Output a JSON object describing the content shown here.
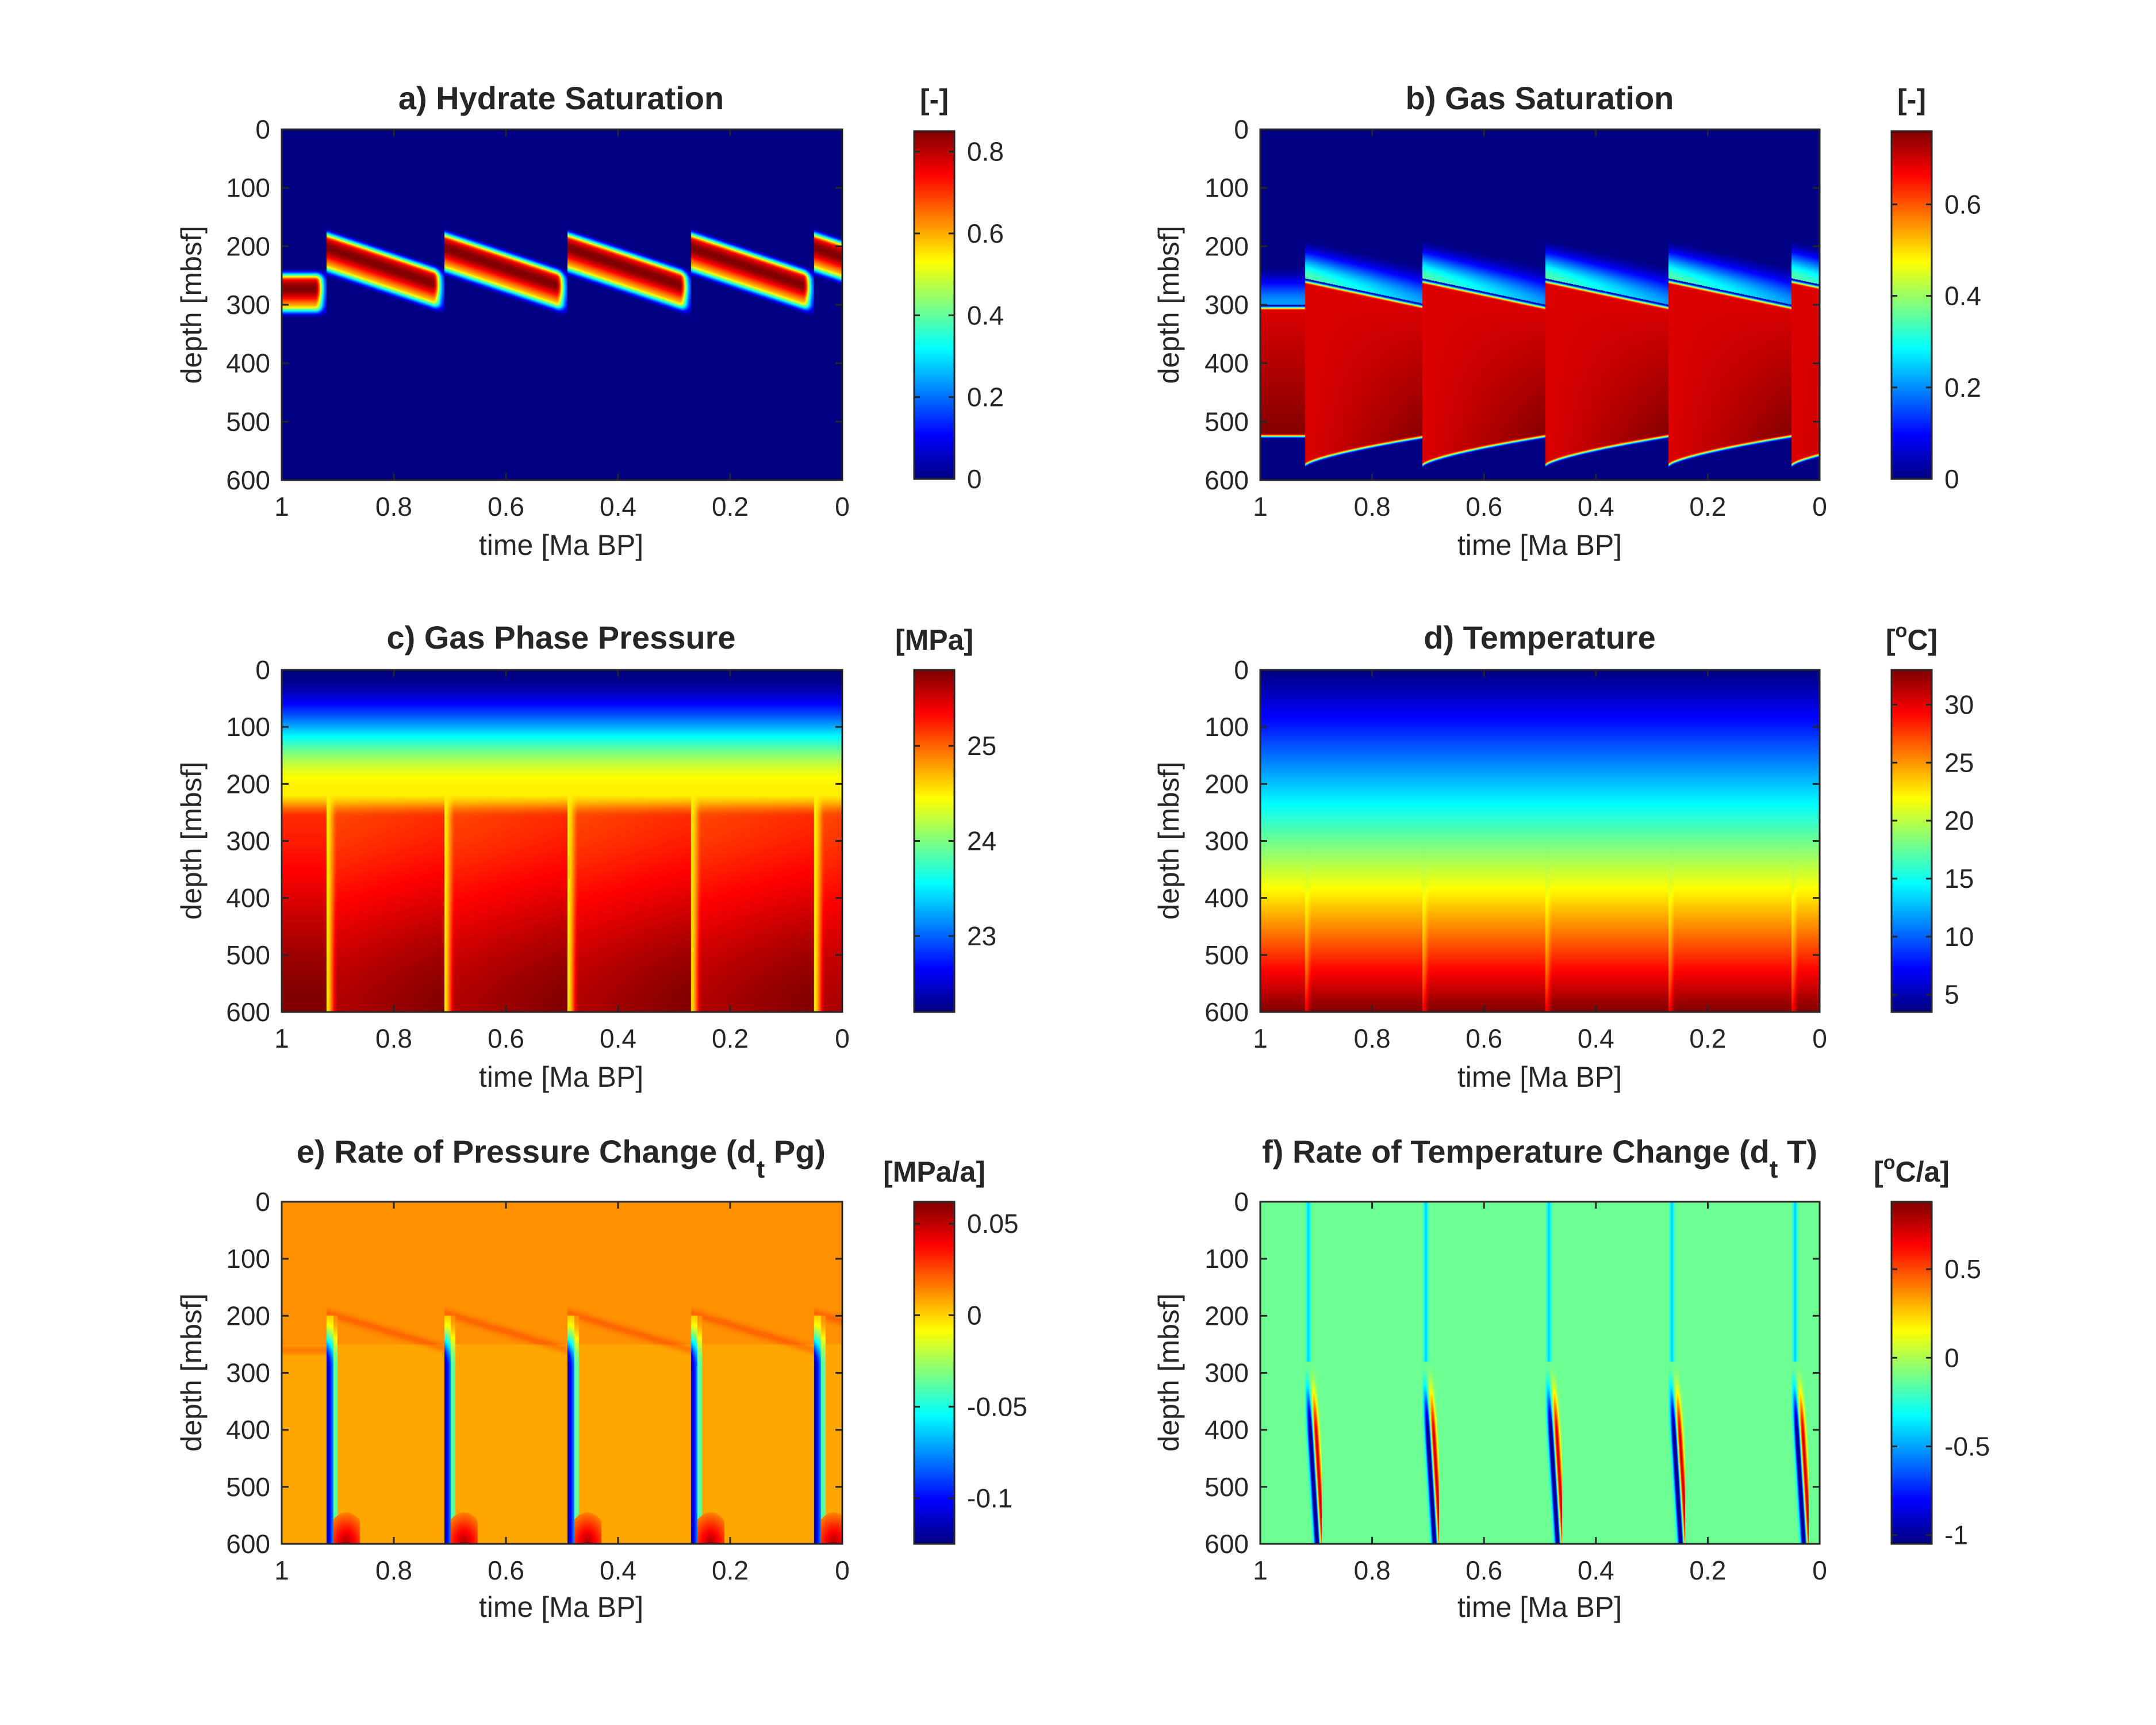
{
  "chart_data": [
    {
      "type": "heatmap",
      "panel": "a",
      "title": "a) Hydrate Saturation",
      "xlabel": "time [Ma BP]",
      "ylabel": "depth [mbsf]",
      "xlim": [
        1,
        0
      ],
      "ylim": [
        0,
        600
      ],
      "xticks": [
        "1",
        "0.8",
        "0.6",
        "0.4",
        "0.2",
        "0"
      ],
      "yticks": [
        "0",
        "100",
        "200",
        "300",
        "400",
        "500",
        "600"
      ],
      "colorbar": {
        "label": "[-]",
        "min": 0,
        "max": 0.85,
        "ticks": [
          "0",
          "0.2",
          "0.4",
          "0.6",
          "0.8"
        ],
        "tick_values": [
          0,
          0.2,
          0.4,
          0.6,
          0.8
        ]
      },
      "colormap": "jet",
      "field": "hydrate",
      "cycle_times_ma": [
        0.92,
        0.71,
        0.49,
        0.27,
        0.05
      ],
      "background_value": 0,
      "band": {
        "top_depth_start": 185,
        "top_depth_end": 255,
        "thickness": 50,
        "peak_value": 0.85
      }
    },
    {
      "type": "heatmap",
      "panel": "b",
      "title": "b) Gas Saturation",
      "xlabel": "time [Ma BP]",
      "ylabel": "depth [mbsf]",
      "xlim": [
        1,
        0
      ],
      "ylim": [
        0,
        600
      ],
      "xticks": [
        "1",
        "0.8",
        "0.6",
        "0.4",
        "0.2",
        "0"
      ],
      "yticks": [
        "0",
        "100",
        "200",
        "300",
        "400",
        "500",
        "600"
      ],
      "colorbar": {
        "label": "[-]",
        "min": 0,
        "max": 0.76,
        "ticks": [
          "0",
          "0.2",
          "0.4",
          "0.6"
        ],
        "tick_values": [
          0,
          0.2,
          0.4,
          0.6
        ]
      },
      "colormap": "jet",
      "field": "gas",
      "cycle_times_ma": [
        0.92,
        0.71,
        0.49,
        0.27,
        0.05
      ],
      "background_value": 0,
      "gas_zone": {
        "top_depth_start": 255,
        "top_depth_end": 300,
        "bottom_depth_start": 580,
        "bottom_depth_end": 530,
        "value_range": [
          0.66,
          0.76
        ]
      }
    },
    {
      "type": "heatmap",
      "panel": "c",
      "title": "c) Gas Phase Pressure",
      "xlabel": "time [Ma BP]",
      "ylabel": "depth [mbsf]",
      "xlim": [
        1,
        0
      ],
      "ylim": [
        0,
        600
      ],
      "xticks": [
        "1",
        "0.8",
        "0.6",
        "0.4",
        "0.2",
        "0"
      ],
      "yticks": [
        "0",
        "100",
        "200",
        "300",
        "400",
        "500",
        "600"
      ],
      "colorbar": {
        "label": "[MPa]",
        "min": 22.2,
        "max": 25.8,
        "ticks": [
          "23",
          "24",
          "25"
        ],
        "tick_values": [
          23,
          24,
          25
        ]
      },
      "colormap": "jet",
      "field": "pressure",
      "cycle_times_ma": [
        0.92,
        0.71,
        0.49,
        0.27,
        0.05
      ],
      "surface_value": 22.2,
      "plateau_value": 24.5,
      "deep_value_range": [
        25.2,
        25.8
      ]
    },
    {
      "type": "heatmap",
      "panel": "d",
      "title": "d) Temperature",
      "xlabel": "time [Ma BP]",
      "ylabel": "depth [mbsf]",
      "xlim": [
        1,
        0
      ],
      "ylim": [
        0,
        600
      ],
      "xticks": [
        "1",
        "0.8",
        "0.6",
        "0.4",
        "0.2",
        "0"
      ],
      "yticks": [
        "0",
        "100",
        "200",
        "300",
        "400",
        "500",
        "600"
      ],
      "colorbar": {
        "label_main": "[",
        "label_sup": "o",
        "label_rest": "C]",
        "min": 3.5,
        "max": 33,
        "ticks": [
          "5",
          "10",
          "15",
          "20",
          "25",
          "30"
        ],
        "tick_values": [
          5,
          10,
          15,
          20,
          25,
          30
        ]
      },
      "colormap": "jet",
      "field": "temperature",
      "cycle_times_ma": [
        0.92,
        0.71,
        0.49,
        0.27,
        0.05
      ],
      "surface_value": 3.5,
      "bottom_value": 33
    },
    {
      "type": "heatmap",
      "panel": "e",
      "title_main": "e) Rate of Pressure Change (d",
      "title_sub": "t",
      "title_rest": " Pg)",
      "xlabel": "time [Ma BP]",
      "ylabel": "depth [mbsf]",
      "xlim": [
        1,
        0
      ],
      "ylim": [
        0,
        600
      ],
      "xticks": [
        "1",
        "0.8",
        "0.6",
        "0.4",
        "0.2",
        "0"
      ],
      "yticks": [
        "0",
        "100",
        "200",
        "300",
        "400",
        "500",
        "600"
      ],
      "colorbar": {
        "label": "[MPa/a]",
        "min": -0.125,
        "max": 0.062,
        "ticks": [
          "-0.1",
          "-0.05",
          "0",
          "0.05"
        ],
        "tick_values": [
          -0.1,
          -0.05,
          0,
          0.05
        ]
      },
      "colormap": "jet",
      "field": "dpressure",
      "cycle_times_ma": [
        0.92,
        0.71,
        0.49,
        0.27,
        0.05
      ],
      "background_value": 0.012,
      "spike_min": -0.125
    },
    {
      "type": "heatmap",
      "panel": "f",
      "title_main": "f) Rate of Temperature Change (d",
      "title_sub": "t",
      "title_rest": " T)",
      "xlabel": "time [Ma BP]",
      "ylabel": "depth [mbsf]",
      "xlim": [
        1,
        0
      ],
      "ylim": [
        0,
        600
      ],
      "xticks": [
        "1",
        "0.8",
        "0.6",
        "0.4",
        "0.2",
        "0"
      ],
      "yticks": [
        "0",
        "100",
        "200",
        "300",
        "400",
        "500",
        "600"
      ],
      "colorbar": {
        "label_main": "[",
        "label_sup": "o",
        "label_rest": "C/a]",
        "min": -1.05,
        "max": 0.88,
        "ticks": [
          "-1",
          "-0.5",
          "0",
          "0.5"
        ],
        "tick_values": [
          -1,
          -0.5,
          0,
          0.5
        ]
      },
      "colormap": "jet",
      "field": "dtemperature",
      "cycle_times_ma": [
        0.92,
        0.71,
        0.49,
        0.27,
        0.05
      ],
      "background_value": -0.12,
      "spike_range": [
        -1.05,
        0.88
      ]
    }
  ]
}
